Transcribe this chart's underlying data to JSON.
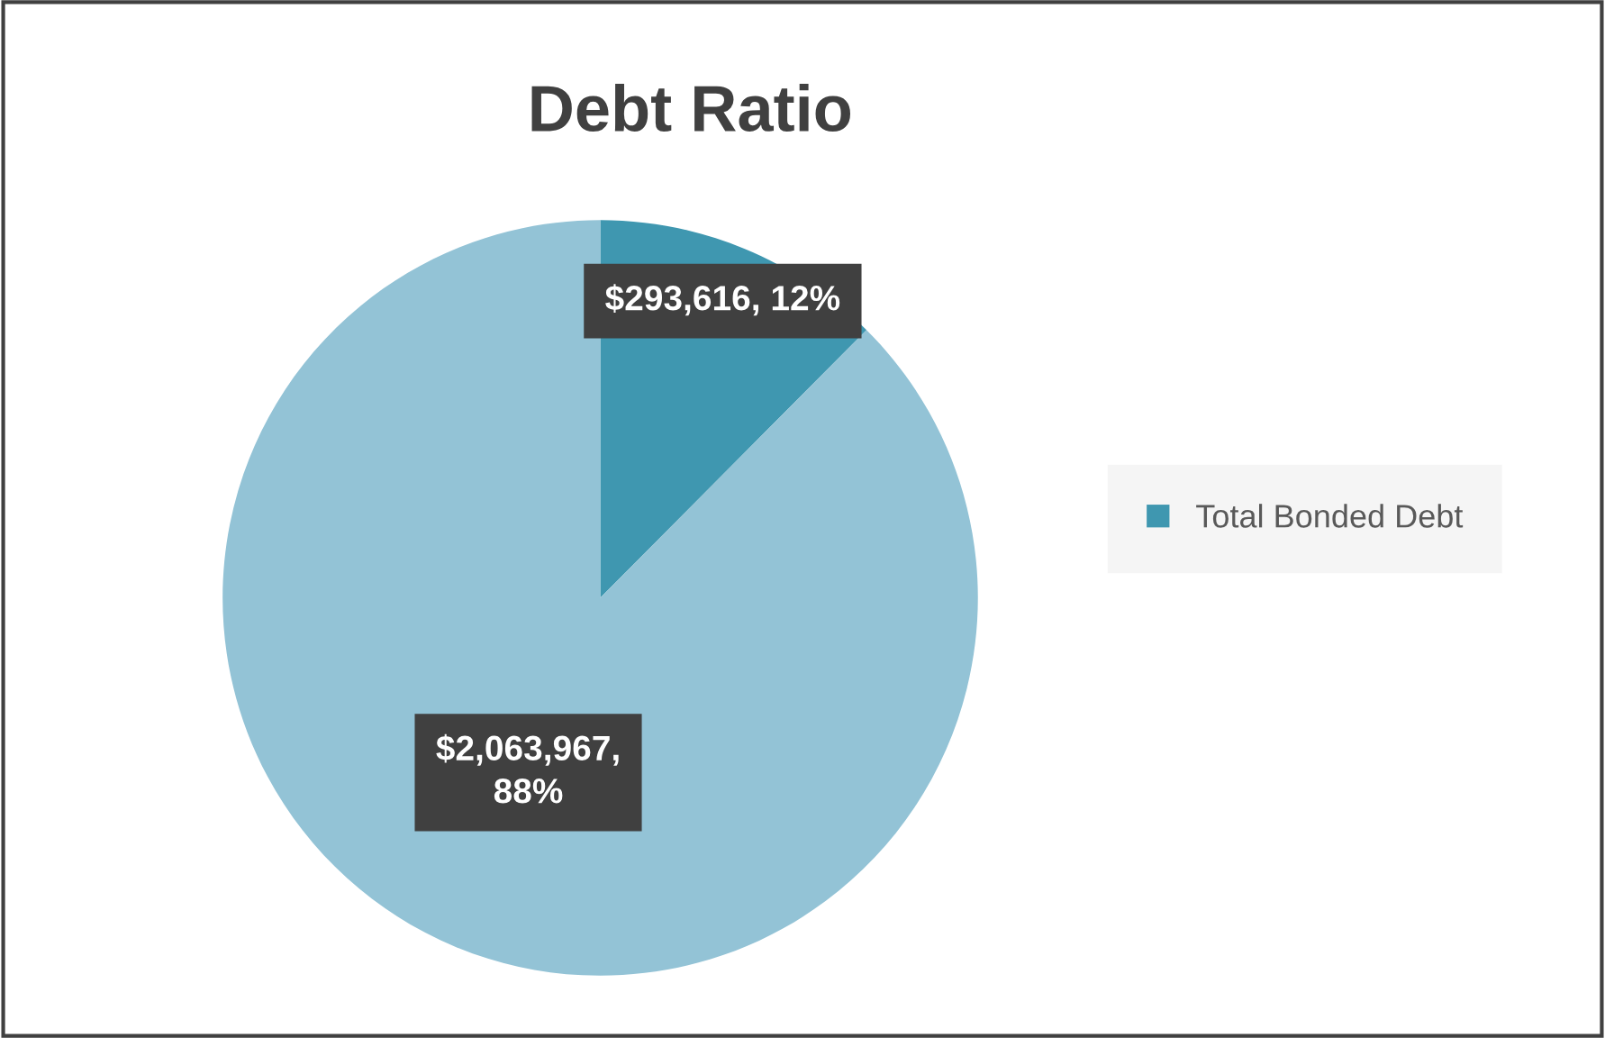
{
  "chart_data": {
    "type": "pie",
    "title": "Debt Ratio",
    "categories": [
      "Total Bonded Debt",
      null
    ],
    "values": [
      293616,
      2063967
    ],
    "colors": [
      "#3f97b0",
      "#93c3d6"
    ],
    "value_labels": [
      "$293,616, 12%",
      "$2,063,967,\n88%"
    ],
    "legend": "right"
  }
}
